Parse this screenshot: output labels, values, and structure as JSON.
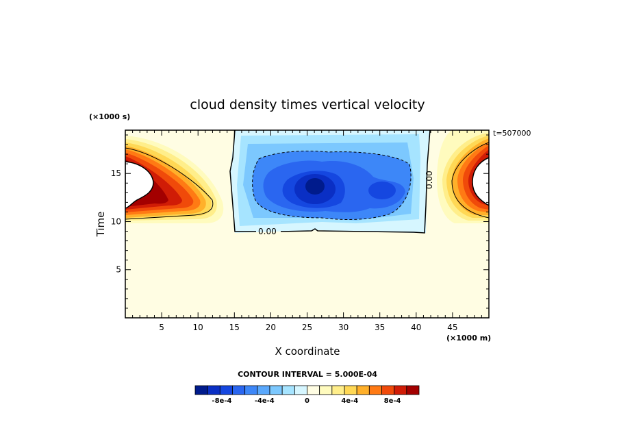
{
  "chart_data": {
    "type": "heatmap",
    "title": "cloud density times vertical velocity",
    "xlabel": "X coordinate",
    "ylabel": "Time",
    "x_unit": "(×1000 m)",
    "y_unit": "(×1000 s)",
    "time_label": "t=507000",
    "x_ticks": [
      "5",
      "10",
      "15",
      "20",
      "25",
      "30",
      "35",
      "40",
      "45"
    ],
    "y_ticks": [
      "5",
      "10",
      "15"
    ],
    "xlim": [
      0,
      50
    ],
    "ylim": [
      0,
      19.5
    ],
    "zero_contour_label": "0.00",
    "contour_interval_text": "CONTOUR INTERVAL = 5.000E-04",
    "colorbar": {
      "colors": [
        "#001b8c",
        "#0a2fc4",
        "#1547e0",
        "#2a66f0",
        "#3d87f8",
        "#5aa8fc",
        "#7cc8fe",
        "#a6e4ff",
        "#d6f6ff",
        "#fffde3",
        "#fffbbe",
        "#ffee8a",
        "#ffd855",
        "#ffb02a",
        "#ff7a14",
        "#f04a0a",
        "#d01c06",
        "#a30000"
      ],
      "tick_labels": [
        "-8e-4",
        "-4e-4",
        "0",
        "4e-4",
        "8e-4"
      ],
      "tick_values": [
        -0.0008,
        -0.0004,
        0,
        0.0004,
        0.0008
      ],
      "range": [
        -0.00105,
        0.00105
      ]
    },
    "features": [
      {
        "kind": "positive-max",
        "x": 0,
        "y": 14,
        "value": 0.001
      },
      {
        "kind": "negative-min",
        "x": 26,
        "y": 14,
        "value": -0.001
      },
      {
        "kind": "positive-max",
        "x": 50,
        "y": 14,
        "value": 0.001
      }
    ]
  }
}
